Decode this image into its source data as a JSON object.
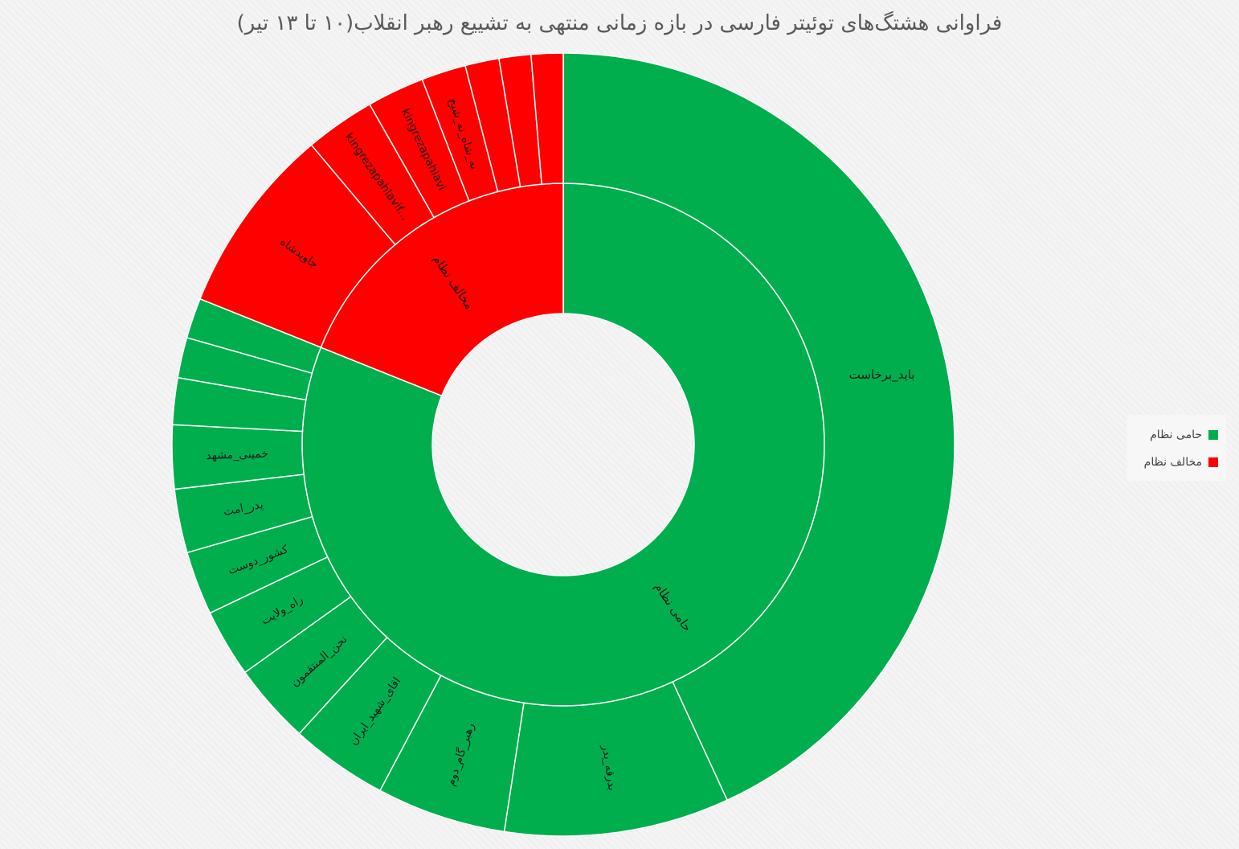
{
  "chart_data": {
    "type": "sunburst",
    "title": "فراوانی هشتگ‌های توئیتر فارسی در بازه زمانی منتهی به تشییع رهبر انقلاب(۱۰ تا ۱۳ تیر)",
    "legend": {
      "position": "right"
    },
    "colors": {
      "حامی نظام": "#00ae4e",
      "مخالف نظام": "#ff0000"
    },
    "categories": [
      {
        "name": "حامی نظام",
        "color": "#00ae4e",
        "children": [
          {
            "label": "باید_برخاست",
            "value": 49.2
          },
          {
            "label": "بدرقه_پدر",
            "value": 10.6
          },
          {
            "label": "رهبر_گام_دوم",
            "value": 6.1
          },
          {
            "label": "اقای_شهید_ایران",
            "value": 4.6
          },
          {
            "label": "نحن_المنتقمون",
            "value": 3.8
          },
          {
            "label": "راه_ولایت",
            "value": 3.2
          },
          {
            "label": "کشور_دوست",
            "value": 3.0
          },
          {
            "label": "پدر_امت",
            "value": 3.0
          },
          {
            "label": "خمینی_مشهد",
            "value": 3.0
          },
          {
            "label": "",
            "value": 2.2
          },
          {
            "label": "",
            "value": 1.9
          },
          {
            "label": "",
            "value": 1.9
          }
        ]
      },
      {
        "name": "مخالف نظام",
        "color": "#ff0000",
        "children": [
          {
            "label": "جاویدشاه",
            "value": 8.9
          },
          {
            "label": "kingrezapahlavif...",
            "value": 3.3
          },
          {
            "label": "kingrezapahlavi",
            "value": 2.7
          },
          {
            "label": "نه_شاه_نه_شیخ",
            "value": 2.1
          },
          {
            "label": "",
            "value": 1.6
          },
          {
            "label": "",
            "value": 1.5
          },
          {
            "label": "",
            "value": 1.5
          }
        ]
      }
    ]
  }
}
